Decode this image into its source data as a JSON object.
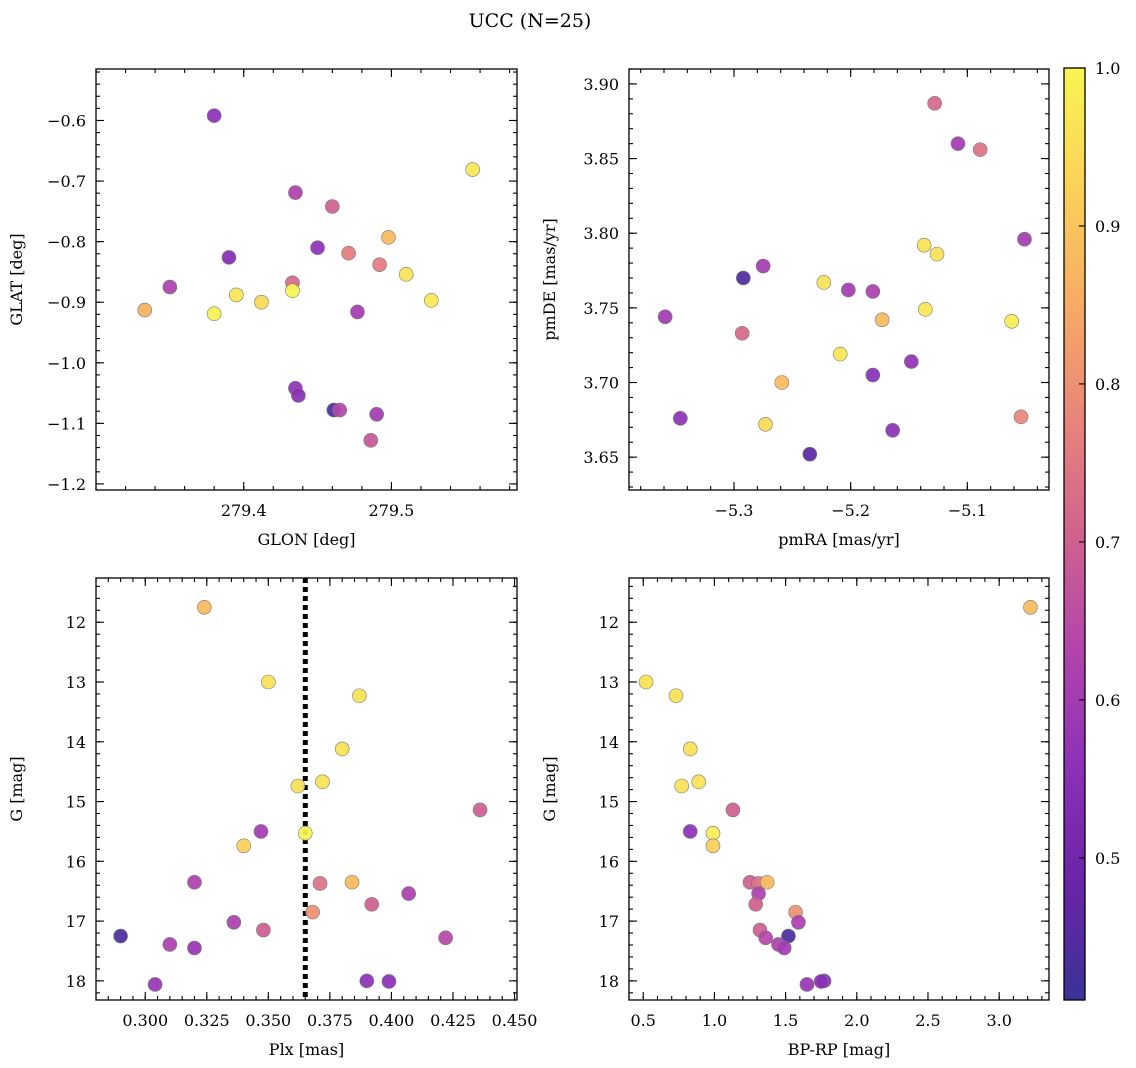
{
  "figure": {
    "title": "UCC (N=25)"
  },
  "colormap": {
    "name": "plasma",
    "stops": [
      "#3a3397",
      "#6a24a8",
      "#8c31b8",
      "#b244ac",
      "#d0628e",
      "#e9857a",
      "#f7ac63",
      "#fad258",
      "#f8f552"
    ]
  },
  "chart_data": [
    {
      "id": "sky",
      "type": "scatter",
      "xlabel": "GLON [deg]",
      "ylabel": "GLAT [deg]",
      "xlim": [
        279.3,
        279.585
      ],
      "ylim": [
        -1.21,
        -0.515
      ],
      "y_inverted": false,
      "xticks": [
        279.4,
        279.5
      ],
      "xtick_labels": [
        "279.4",
        "279.5"
      ],
      "yticks": [
        -1.2,
        -1.1,
        -1.0,
        -0.9,
        -0.8,
        -0.7,
        -0.6
      ],
      "ytick_labels": [
        "−1.2",
        "−1.1",
        "−1.0",
        "−0.9",
        "−0.8",
        "−0.7",
        "−0.6"
      ],
      "points": [
        {
          "x": 279.38,
          "y": -0.592,
          "c": 0.56
        },
        {
          "x": 279.555,
          "y": -0.681,
          "c": 0.97
        },
        {
          "x": 279.435,
          "y": -0.719,
          "c": 0.62
        },
        {
          "x": 279.46,
          "y": -0.742,
          "c": 0.7
        },
        {
          "x": 279.498,
          "y": -0.793,
          "c": 0.88
        },
        {
          "x": 279.45,
          "y": -0.81,
          "c": 0.56
        },
        {
          "x": 279.471,
          "y": -0.819,
          "c": 0.76
        },
        {
          "x": 279.39,
          "y": -0.826,
          "c": 0.54
        },
        {
          "x": 279.492,
          "y": -0.838,
          "c": 0.76
        },
        {
          "x": 279.51,
          "y": -0.854,
          "c": 0.96
        },
        {
          "x": 279.433,
          "y": -0.868,
          "c": 0.72
        },
        {
          "x": 279.35,
          "y": -0.875,
          "c": 0.62
        },
        {
          "x": 279.433,
          "y": -0.881,
          "c": 1.0
        },
        {
          "x": 279.395,
          "y": -0.888,
          "c": 0.97
        },
        {
          "x": 279.527,
          "y": -0.897,
          "c": 0.97
        },
        {
          "x": 279.412,
          "y": -0.9,
          "c": 0.94
        },
        {
          "x": 279.333,
          "y": -0.913,
          "c": 0.86
        },
        {
          "x": 279.477,
          "y": -0.916,
          "c": 0.6
        },
        {
          "x": 279.38,
          "y": -0.919,
          "c": 0.99
        },
        {
          "x": 279.435,
          "y": -1.042,
          "c": 0.57
        },
        {
          "x": 279.437,
          "y": -1.054,
          "c": 0.55
        },
        {
          "x": 279.461,
          "y": -1.078,
          "c": 0.44
        },
        {
          "x": 279.465,
          "y": -1.078,
          "c": 0.64
        },
        {
          "x": 279.49,
          "y": -1.085,
          "c": 0.6
        },
        {
          "x": 279.486,
          "y": -1.128,
          "c": 0.68
        }
      ]
    },
    {
      "id": "pm",
      "type": "scatter",
      "xlabel": "pmRA [mas/yr]",
      "ylabel": "pmDE [mas/yr]",
      "xlim": [
        -5.39,
        -5.03
      ],
      "ylim": [
        3.628,
        3.91
      ],
      "y_inverted": false,
      "xticks": [
        -5.3,
        -5.2,
        -5.1
      ],
      "xtick_labels": [
        "−5.3",
        "−5.2",
        "−5.1"
      ],
      "yticks": [
        3.65,
        3.7,
        3.75,
        3.8,
        3.85,
        3.9
      ],
      "ytick_labels": [
        "3.65",
        "3.70",
        "3.75",
        "3.80",
        "3.85",
        "3.90"
      ],
      "points": [
        {
          "x": -5.128,
          "y": 3.887,
          "c": 0.72
        },
        {
          "x": -5.108,
          "y": 3.86,
          "c": 0.6
        },
        {
          "x": -5.089,
          "y": 3.856,
          "c": 0.74
        },
        {
          "x": -5.051,
          "y": 3.796,
          "c": 0.6
        },
        {
          "x": -5.137,
          "y": 3.792,
          "c": 0.96
        },
        {
          "x": -5.126,
          "y": 3.786,
          "c": 0.96
        },
        {
          "x": -5.275,
          "y": 3.778,
          "c": 0.6
        },
        {
          "x": -5.292,
          "y": 3.77,
          "c": 0.44
        },
        {
          "x": -5.223,
          "y": 3.767,
          "c": 0.96
        },
        {
          "x": -5.202,
          "y": 3.762,
          "c": 0.6
        },
        {
          "x": -5.181,
          "y": 3.761,
          "c": 0.62
        },
        {
          "x": -5.136,
          "y": 3.749,
          "c": 0.97
        },
        {
          "x": -5.359,
          "y": 3.744,
          "c": 0.6
        },
        {
          "x": -5.173,
          "y": 3.742,
          "c": 0.88
        },
        {
          "x": -5.062,
          "y": 3.741,
          "c": 0.98
        },
        {
          "x": -5.293,
          "y": 3.733,
          "c": 0.72
        },
        {
          "x": -5.209,
          "y": 3.719,
          "c": 0.97
        },
        {
          "x": -5.148,
          "y": 3.714,
          "c": 0.57
        },
        {
          "x": -5.181,
          "y": 3.705,
          "c": 0.55
        },
        {
          "x": -5.259,
          "y": 3.7,
          "c": 0.88
        },
        {
          "x": -5.346,
          "y": 3.676,
          "c": 0.56
        },
        {
          "x": -5.054,
          "y": 3.677,
          "c": 0.78
        },
        {
          "x": -5.273,
          "y": 3.672,
          "c": 0.94
        },
        {
          "x": -5.164,
          "y": 3.668,
          "c": 0.56
        },
        {
          "x": -5.235,
          "y": 3.652,
          "c": 0.46
        }
      ]
    },
    {
      "id": "plx",
      "type": "scatter",
      "xlabel": "Plx [mas]",
      "ylabel": "G [mag]",
      "xlim": [
        0.28,
        0.451
      ],
      "ylim": [
        18.32,
        11.26
      ],
      "y_inverted": true,
      "xticks": [
        0.3,
        0.325,
        0.35,
        0.375,
        0.4,
        0.425,
        0.45
      ],
      "xtick_labels": [
        "0.300",
        "0.325",
        "0.350",
        "0.375",
        "0.400",
        "0.425",
        "0.450"
      ],
      "yticks": [
        12,
        13,
        14,
        15,
        16,
        17,
        18
      ],
      "ytick_labels": [
        "12",
        "13",
        "14",
        "15",
        "16",
        "17",
        "18"
      ],
      "vline_x": 0.365,
      "points": [
        {
          "x": 0.324,
          "y": 11.75,
          "c": 0.88
        },
        {
          "x": 0.35,
          "y": 13.0,
          "c": 0.96
        },
        {
          "x": 0.387,
          "y": 13.23,
          "c": 0.96
        },
        {
          "x": 0.38,
          "y": 14.12,
          "c": 0.96
        },
        {
          "x": 0.372,
          "y": 14.67,
          "c": 0.96
        },
        {
          "x": 0.362,
          "y": 14.74,
          "c": 0.96
        },
        {
          "x": 0.436,
          "y": 15.14,
          "c": 0.7
        },
        {
          "x": 0.347,
          "y": 15.5,
          "c": 0.6
        },
        {
          "x": 0.365,
          "y": 15.53,
          "c": 1.0
        },
        {
          "x": 0.34,
          "y": 15.74,
          "c": 0.92
        },
        {
          "x": 0.32,
          "y": 16.35,
          "c": 0.62
        },
        {
          "x": 0.384,
          "y": 16.35,
          "c": 0.88
        },
        {
          "x": 0.371,
          "y": 16.37,
          "c": 0.74
        },
        {
          "x": 0.407,
          "y": 16.54,
          "c": 0.62
        },
        {
          "x": 0.392,
          "y": 16.72,
          "c": 0.7
        },
        {
          "x": 0.368,
          "y": 16.85,
          "c": 0.8
        },
        {
          "x": 0.336,
          "y": 17.02,
          "c": 0.62
        },
        {
          "x": 0.348,
          "y": 17.15,
          "c": 0.7
        },
        {
          "x": 0.29,
          "y": 17.25,
          "c": 0.44
        },
        {
          "x": 0.422,
          "y": 17.28,
          "c": 0.64
        },
        {
          "x": 0.31,
          "y": 17.39,
          "c": 0.62
        },
        {
          "x": 0.32,
          "y": 17.45,
          "c": 0.58
        },
        {
          "x": 0.39,
          "y": 18.0,
          "c": 0.56
        },
        {
          "x": 0.399,
          "y": 18.01,
          "c": 0.55
        },
        {
          "x": 0.304,
          "y": 18.06,
          "c": 0.58
        }
      ]
    },
    {
      "id": "cmd",
      "type": "scatter",
      "xlabel": "BP-RP [mag]",
      "ylabel": "G [mag]",
      "xlim": [
        0.4,
        3.35
      ],
      "ylim": [
        18.32,
        11.26
      ],
      "y_inverted": true,
      "xticks": [
        0.5,
        1.0,
        1.5,
        2.0,
        2.5,
        3.0
      ],
      "xtick_labels": [
        "0.5",
        "1.0",
        "1.5",
        "2.0",
        "2.5",
        "3.0"
      ],
      "yticks": [
        12,
        13,
        14,
        15,
        16,
        17,
        18
      ],
      "ytick_labels": [
        "12",
        "13",
        "14",
        "15",
        "16",
        "17",
        "18"
      ],
      "points": [
        {
          "x": 3.22,
          "y": 11.75,
          "c": 0.88
        },
        {
          "x": 0.52,
          "y": 13.0,
          "c": 0.96
        },
        {
          "x": 0.73,
          "y": 13.23,
          "c": 0.96
        },
        {
          "x": 0.83,
          "y": 14.12,
          "c": 0.96
        },
        {
          "x": 0.89,
          "y": 14.67,
          "c": 0.96
        },
        {
          "x": 0.77,
          "y": 14.74,
          "c": 0.96
        },
        {
          "x": 1.13,
          "y": 15.14,
          "c": 0.7
        },
        {
          "x": 0.83,
          "y": 15.5,
          "c": 0.56
        },
        {
          "x": 0.99,
          "y": 15.53,
          "c": 0.98
        },
        {
          "x": 0.99,
          "y": 15.74,
          "c": 0.92
        },
        {
          "x": 1.25,
          "y": 16.35,
          "c": 0.7
        },
        {
          "x": 1.31,
          "y": 16.37,
          "c": 0.74
        },
        {
          "x": 1.37,
          "y": 16.35,
          "c": 0.88
        },
        {
          "x": 1.31,
          "y": 16.54,
          "c": 0.62
        },
        {
          "x": 1.29,
          "y": 16.72,
          "c": 0.7
        },
        {
          "x": 1.57,
          "y": 16.85,
          "c": 0.8
        },
        {
          "x": 1.59,
          "y": 17.02,
          "c": 0.62
        },
        {
          "x": 1.32,
          "y": 17.15,
          "c": 0.7
        },
        {
          "x": 1.52,
          "y": 17.25,
          "c": 0.44
        },
        {
          "x": 1.36,
          "y": 17.28,
          "c": 0.64
        },
        {
          "x": 1.45,
          "y": 17.39,
          "c": 0.62
        },
        {
          "x": 1.49,
          "y": 17.45,
          "c": 0.6
        },
        {
          "x": 1.77,
          "y": 18.0,
          "c": 0.55
        },
        {
          "x": 1.75,
          "y": 18.01,
          "c": 0.55
        },
        {
          "x": 1.65,
          "y": 18.06,
          "c": 0.58
        }
      ]
    }
  ],
  "colorbar": {
    "min": 0.41,
    "max": 1.0,
    "ticks": [
      0.5,
      0.6,
      0.7,
      0.8,
      0.9,
      1.0
    ],
    "tick_labels": [
      "0.5",
      "0.6",
      "0.7",
      "0.8",
      "0.9",
      "1.0"
    ]
  }
}
